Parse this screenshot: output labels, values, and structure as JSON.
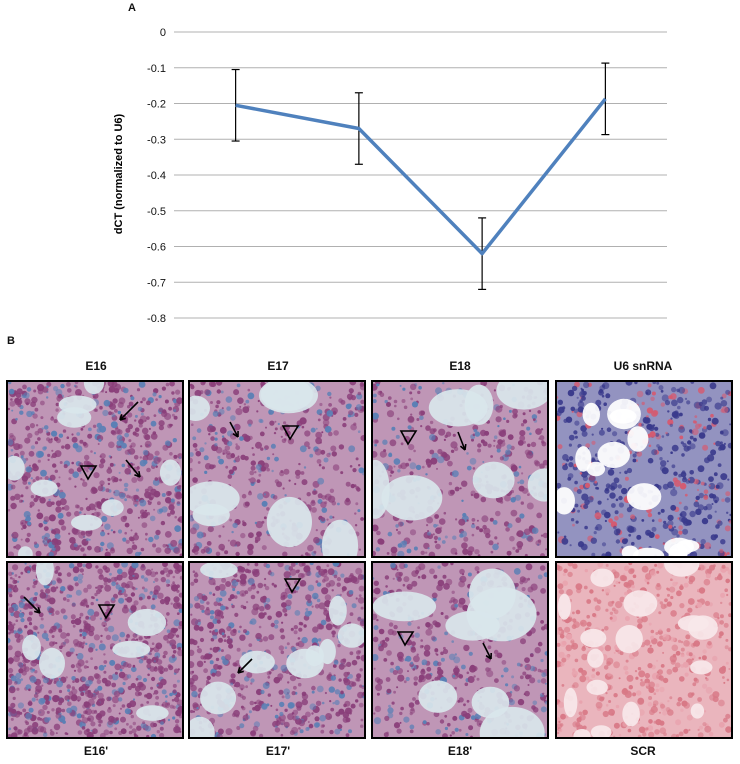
{
  "figure": {
    "panel_a_letter": "A",
    "panel_b_letter": "B"
  },
  "chart_data": {
    "type": "line",
    "title": "",
    "xlabel": "",
    "ylabel": "dCT (normalized to U6)",
    "ylim": [
      -0.8,
      0
    ],
    "yticks": [
      "0",
      "-0.1",
      "-0.2",
      "-0.3",
      "-0.4",
      "-0.5",
      "-0.6",
      "-0.7",
      "-0.8"
    ],
    "grid": true,
    "x": [
      1,
      2,
      3,
      4
    ],
    "series": [
      {
        "values": [
          -0.205,
          -0.27,
          -0.62,
          -0.187
        ],
        "errors": [
          0.1,
          0.1,
          0.1,
          0.1
        ],
        "color": "#4F81BD"
      }
    ]
  },
  "micrographs": {
    "top_labels": [
      "E16",
      "E17",
      "E18",
      "U6 snRNA"
    ],
    "bottom_labels": [
      "E16'",
      "E17'",
      "E18'",
      "SCR"
    ],
    "stains": {
      "trichrome_bg": "#d9e6ec",
      "trichrome_tissue": "#8a3f7a",
      "u6_bg": "#ffffff",
      "u6_tissue": "#3a3a8c",
      "scr_bg": "#f7e8ea",
      "scr_tissue": "#d87886"
    }
  }
}
